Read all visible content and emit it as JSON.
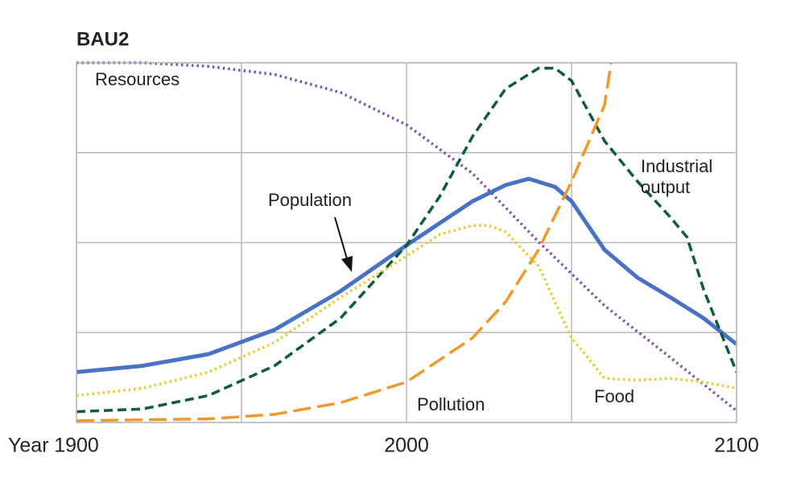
{
  "chart_data": {
    "type": "line",
    "title": "BAU2",
    "xlabel": "Year",
    "xlim": [
      1900,
      2100
    ],
    "xticks": [
      1900,
      2000,
      2100
    ],
    "xgrid": [
      1900,
      1950,
      2000,
      2050,
      2100
    ],
    "ylim": [
      0,
      4
    ],
    "yticks": [
      0,
      1,
      2,
      3,
      4
    ],
    "show_ytick_labels": false,
    "grid": true,
    "series": [
      {
        "name": "Resources",
        "color": "#7b4fb0",
        "style": "dotted",
        "x": [
          1900,
          1920,
          1940,
          1960,
          1980,
          2000,
          2020,
          2040,
          2060,
          2080,
          2100
        ],
        "values": [
          4.0,
          4.0,
          3.96,
          3.87,
          3.67,
          3.31,
          2.77,
          2.01,
          1.3,
          0.72,
          0.13
        ]
      },
      {
        "name": "Population",
        "color": "#4a72c4",
        "style": "solid",
        "x": [
          1900,
          1920,
          1940,
          1960,
          1980,
          2000,
          2020,
          2030,
          2037,
          2045,
          2050,
          2060,
          2070,
          2080,
          2090,
          2100
        ],
        "values": [
          0.56,
          0.63,
          0.76,
          1.03,
          1.46,
          1.97,
          2.46,
          2.64,
          2.71,
          2.62,
          2.46,
          1.92,
          1.61,
          1.39,
          1.16,
          0.87
        ]
      },
      {
        "name": "Industrial output",
        "color": "#0d5c3a",
        "style": "dashed",
        "x": [
          1900,
          1920,
          1940,
          1960,
          1980,
          2000,
          2010,
          2020,
          2030,
          2040,
          2045,
          2050,
          2060,
          2070,
          2080,
          2085,
          2090,
          2100
        ],
        "values": [
          0.12,
          0.15,
          0.3,
          0.63,
          1.16,
          1.97,
          2.51,
          3.18,
          3.71,
          3.94,
          3.94,
          3.8,
          3.13,
          2.68,
          2.28,
          2.06,
          1.48,
          0.56
        ]
      },
      {
        "name": "Pollution",
        "color": "#f0982a",
        "style": "long-dashed",
        "x": [
          1900,
          1940,
          1960,
          1980,
          2000,
          2020,
          2030,
          2040,
          2050,
          2060,
          2062
        ],
        "values": [
          0.02,
          0.04,
          0.09,
          0.22,
          0.45,
          0.94,
          1.34,
          1.92,
          2.68,
          3.53,
          4.0
        ]
      },
      {
        "name": "Food",
        "color": "#e8c928",
        "style": "dotted",
        "x": [
          1900,
          1920,
          1940,
          1960,
          1980,
          2000,
          2010,
          2020,
          2025,
          2030,
          2040,
          2050,
          2060,
          2070,
          2080,
          2090,
          2100
        ],
        "values": [
          0.3,
          0.38,
          0.56,
          0.89,
          1.39,
          1.85,
          2.09,
          2.19,
          2.19,
          2.12,
          1.74,
          0.94,
          0.49,
          0.47,
          0.49,
          0.45,
          0.38
        ]
      }
    ]
  }
}
